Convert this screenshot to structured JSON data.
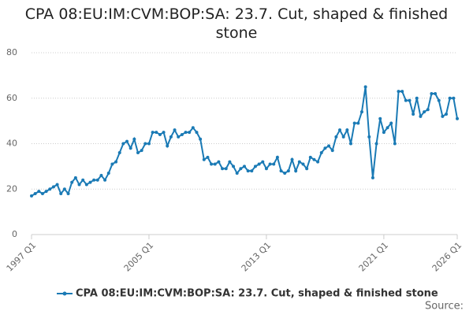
{
  "chart_data": {
    "type": "line",
    "title": "CPA 08:EU:IM:CVM:BOP:SA: 23.7. Cut, shaped & finished stone",
    "source": "Source:",
    "categories": [
      "1997 Q1",
      null,
      null,
      null,
      null,
      null,
      null,
      null,
      null,
      null,
      null,
      null,
      null,
      null,
      null,
      null,
      null,
      null,
      null,
      null,
      null,
      null,
      null,
      null,
      null,
      null,
      null,
      null,
      null,
      null,
      null,
      null,
      "2005 Q1",
      null,
      null,
      null,
      null,
      null,
      null,
      null,
      null,
      null,
      null,
      null,
      null,
      null,
      null,
      null,
      null,
      null,
      null,
      null,
      null,
      null,
      null,
      null,
      null,
      null,
      null,
      null,
      null,
      null,
      null,
      null,
      "2013 Q1",
      null,
      null,
      null,
      null,
      null,
      null,
      null,
      null,
      null,
      null,
      null,
      null,
      null,
      null,
      null,
      null,
      null,
      null,
      null,
      null,
      null,
      null,
      null,
      null,
      null,
      null,
      null,
      null,
      null,
      null,
      null,
      "2021 Q1",
      null,
      null,
      null,
      null,
      null,
      null,
      null,
      null,
      null,
      null,
      null,
      null,
      null,
      null,
      null,
      null,
      null,
      null,
      null,
      "2026 Q1"
    ],
    "series": [
      {
        "name": "CPA 08:EU:IM:CVM:BOP:SA: 23.7. Cut, shaped & finished stone",
        "color": "#1a7ab5",
        "values": [
          17,
          18,
          19,
          18,
          19,
          20,
          21,
          22,
          18,
          20,
          18,
          23,
          25,
          22,
          24,
          22,
          23,
          24,
          24,
          26,
          24,
          27,
          31,
          32,
          36,
          40,
          41,
          38,
          42,
          36,
          37,
          40,
          40,
          45,
          45,
          44,
          45,
          39,
          43,
          46,
          43,
          44,
          45,
          45,
          47,
          45,
          42,
          33,
          34,
          31,
          31,
          32,
          29,
          29,
          32,
          30,
          27,
          29,
          30,
          28,
          28,
          30,
          31,
          32,
          29,
          31,
          31,
          34,
          28,
          27,
          28,
          33,
          28,
          32,
          31,
          29,
          34,
          33,
          32,
          36,
          38,
          39,
          37,
          43,
          46,
          43,
          46,
          40,
          49,
          49,
          54,
          65,
          43,
          25,
          40,
          51,
          45,
          47,
          49,
          40,
          63,
          63,
          59,
          59,
          53,
          60,
          52,
          54,
          55,
          62,
          62,
          59,
          52,
          53,
          60,
          60,
          51
        ]
      }
    ],
    "ylim": [
      0,
      80
    ],
    "yticks": [
      0,
      20,
      40,
      60,
      80
    ],
    "grid": true
  }
}
